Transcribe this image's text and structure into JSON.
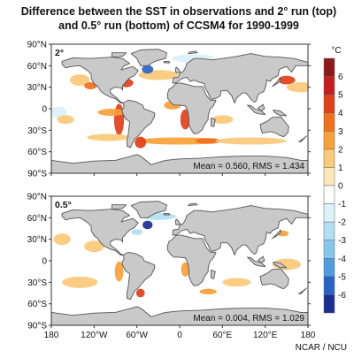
{
  "title_line1": "Difference between the SST in observations and 2° run (top)",
  "title_line2": "and 0.5° run (bottom) of CCSM4 for 1990-1999",
  "credit": "NCAR / NCU",
  "colors": {
    "land": "#c9c9c9",
    "coast": "#555555",
    "frame": "#333333"
  },
  "chart_data": {
    "type": "heatmap",
    "x_ticks": [
      "180",
      "120°W",
      "60°W",
      "0",
      "60°E",
      "120°E",
      "180"
    ],
    "y_ticks": [
      "90°N",
      "60°N",
      "30°N",
      "0",
      "30°S",
      "60°S",
      "90°S"
    ],
    "xlim": [
      -180,
      180
    ],
    "ylim": [
      -90,
      90
    ],
    "colorbar": {
      "unit": "°C",
      "labels": [
        "6",
        "5",
        "4",
        "3",
        "2",
        "1",
        "0",
        "-1",
        "-2",
        "-3",
        "-4",
        "-5",
        "-6"
      ],
      "colors": [
        "#8b1a1a",
        "#c41e1e",
        "#e0401c",
        "#f0701e",
        "#f7a13a",
        "#fbc97a",
        "#fde7b8",
        "#ffffff",
        "#dcf1f8",
        "#b2e0f2",
        "#86c7ec",
        "#4f9de0",
        "#2a63c6",
        "#1a2f8f"
      ]
    },
    "panels": [
      {
        "label": "2°",
        "stats": "Mean = 0.560, RMS = 1.434",
        "mean": 0.56,
        "rms": 1.434,
        "anomalies": [
          {
            "lon": -75,
            "lat": 36,
            "rx": 10,
            "ry": 6,
            "level": 4
          },
          {
            "lon": -30,
            "lat": 47,
            "rx": 28,
            "ry": 7,
            "level": 1
          },
          {
            "lon": -45,
            "lat": 55,
            "rx": 8,
            "ry": 6,
            "level": -5
          },
          {
            "lon": 150,
            "lat": 40,
            "rx": 12,
            "ry": 6,
            "level": 4
          },
          {
            "lon": -140,
            "lat": 40,
            "rx": 14,
            "ry": 8,
            "level": 1
          },
          {
            "lon": 170,
            "lat": 30,
            "rx": 20,
            "ry": 7,
            "level": 1
          },
          {
            "lon": -125,
            "lat": 32,
            "rx": 9,
            "ry": 5,
            "level": 3
          },
          {
            "lon": -85,
            "lat": -15,
            "rx": 7,
            "ry": 22,
            "level": 4
          },
          {
            "lon": -95,
            "lat": -5,
            "rx": 20,
            "ry": 5,
            "level": 2
          },
          {
            "lon": 8,
            "lat": -15,
            "rx": 7,
            "ry": 14,
            "level": 4
          },
          {
            "lon": -10,
            "lat": 5,
            "rx": 12,
            "ry": 6,
            "level": 2
          },
          {
            "lon": 0,
            "lat": -45,
            "rx": 60,
            "ry": 5,
            "level": 2
          },
          {
            "lon": 40,
            "lat": -45,
            "rx": 18,
            "ry": 4,
            "level": 3
          },
          {
            "lon": 100,
            "lat": -45,
            "rx": 50,
            "ry": 5,
            "level": 1
          },
          {
            "lon": -100,
            "lat": -40,
            "rx": 30,
            "ry": 5,
            "level": 1
          },
          {
            "lon": -55,
            "lat": -47,
            "rx": 8,
            "ry": 8,
            "level": 4
          },
          {
            "lon": -170,
            "lat": -5,
            "rx": 12,
            "ry": 8,
            "level": -1
          },
          {
            "lon": 20,
            "lat": 70,
            "rx": 30,
            "ry": 6,
            "level": -1
          },
          {
            "lon": -160,
            "lat": -15,
            "rx": 12,
            "ry": 6,
            "level": 1
          },
          {
            "lon": 60,
            "lat": -15,
            "rx": 15,
            "ry": 6,
            "level": 1
          }
        ]
      },
      {
        "label": "0.5°",
        "stats": "Mean = 0.004, RMS = 1.029",
        "mean": 0.004,
        "rms": 1.029,
        "anomalies": [
          {
            "lon": -45,
            "lat": 50,
            "rx": 7,
            "ry": 6,
            "level": -6
          },
          {
            "lon": -30,
            "lat": 62,
            "rx": 25,
            "ry": 5,
            "level": -2
          },
          {
            "lon": -60,
            "lat": 40,
            "rx": 8,
            "ry": 4,
            "level": -2
          },
          {
            "lon": -85,
            "lat": -15,
            "rx": 6,
            "ry": 14,
            "level": 2
          },
          {
            "lon": 8,
            "lat": -12,
            "rx": 6,
            "ry": 10,
            "level": 2
          },
          {
            "lon": -120,
            "lat": 20,
            "rx": 14,
            "ry": 8,
            "level": 1
          },
          {
            "lon": -165,
            "lat": 30,
            "rx": 12,
            "ry": 8,
            "level": 1
          },
          {
            "lon": -55,
            "lat": -45,
            "rx": 6,
            "ry": 6,
            "level": 4
          },
          {
            "lon": 40,
            "lat": -43,
            "rx": 12,
            "ry": 4,
            "level": 2
          },
          {
            "lon": 145,
            "lat": 38,
            "rx": 8,
            "ry": 4,
            "level": 2
          },
          {
            "lon": -140,
            "lat": -30,
            "rx": 25,
            "ry": 8,
            "level": 1
          },
          {
            "lon": 80,
            "lat": -30,
            "rx": 20,
            "ry": 6,
            "level": 1
          },
          {
            "lon": 60,
            "lat": 42,
            "rx": 6,
            "ry": 4,
            "level": -1
          },
          {
            "lon": 150,
            "lat": -5,
            "rx": 20,
            "ry": 8,
            "level": 1
          }
        ]
      }
    ]
  }
}
